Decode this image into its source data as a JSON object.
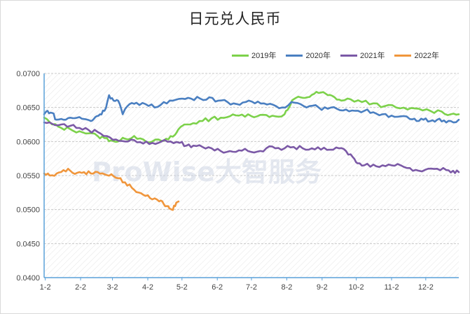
{
  "chart_data": {
    "type": "line",
    "title": "日元兑人民币",
    "watermark": "ProWise大智服务",
    "xlabel": "",
    "ylabel": "",
    "ylim": [
      0.04,
      0.07
    ],
    "y_ticks": [
      "0.0400",
      "0.0450",
      "0.0500",
      "0.0550",
      "0.0600",
      "0.0650",
      "0.0700"
    ],
    "x_ticks": [
      "1-2",
      "2-2",
      "3-2",
      "4-2",
      "5-2",
      "6-2",
      "7-2",
      "8-2",
      "9-2",
      "10-2",
      "11-2",
      "12-2"
    ],
    "grid": "horizontal dashed, hatched background",
    "legend_position": "top-right",
    "x_unit": "day of year",
    "series": [
      {
        "name": "2019年",
        "color": "#7cd14a",
        "points": [
          [
            1,
            0.0635
          ],
          [
            8,
            0.0625
          ],
          [
            16,
            0.062
          ],
          [
            24,
            0.0618
          ],
          [
            32,
            0.0615
          ],
          [
            40,
            0.0612
          ],
          [
            48,
            0.0608
          ],
          [
            54,
            0.0605
          ],
          [
            60,
            0.0602
          ],
          [
            66,
            0.06
          ],
          [
            72,
            0.0604
          ],
          [
            80,
            0.0608
          ],
          [
            88,
            0.0603
          ],
          [
            96,
            0.06
          ],
          [
            104,
            0.0601
          ],
          [
            110,
            0.0603
          ],
          [
            116,
            0.061
          ],
          [
            120,
            0.062
          ],
          [
            124,
            0.0625
          ],
          [
            132,
            0.0627
          ],
          [
            140,
            0.063
          ],
          [
            148,
            0.0634
          ],
          [
            156,
            0.0635
          ],
          [
            164,
            0.0637
          ],
          [
            172,
            0.0638
          ],
          [
            180,
            0.064
          ],
          [
            188,
            0.0637
          ],
          [
            196,
            0.0639
          ],
          [
            204,
            0.0637
          ],
          [
            212,
            0.064
          ],
          [
            216,
            0.065
          ],
          [
            220,
            0.0662
          ],
          [
            226,
            0.0665
          ],
          [
            232,
            0.0665
          ],
          [
            238,
            0.067
          ],
          [
            244,
            0.0672
          ],
          [
            250,
            0.0668
          ],
          [
            256,
            0.0665
          ],
          [
            262,
            0.066
          ],
          [
            270,
            0.0662
          ],
          [
            280,
            0.0658
          ],
          [
            290,
            0.0656
          ],
          [
            300,
            0.0652
          ],
          [
            310,
            0.065
          ],
          [
            320,
            0.0647
          ],
          [
            330,
            0.0648
          ],
          [
            340,
            0.0645
          ],
          [
            350,
            0.0644
          ],
          [
            358,
            0.064
          ],
          [
            365,
            0.064
          ]
        ]
      },
      {
        "name": "2020年",
        "color": "#4a7fc1",
        "points": [
          [
            1,
            0.064
          ],
          [
            4,
            0.0645
          ],
          [
            8,
            0.0642
          ],
          [
            12,
            0.0632
          ],
          [
            18,
            0.0632
          ],
          [
            24,
            0.0635
          ],
          [
            30,
            0.0635
          ],
          [
            36,
            0.0633
          ],
          [
            42,
            0.063
          ],
          [
            46,
            0.0636
          ],
          [
            50,
            0.064
          ],
          [
            54,
            0.0645
          ],
          [
            58,
            0.0668
          ],
          [
            62,
            0.066
          ],
          [
            66,
            0.066
          ],
          [
            70,
            0.064
          ],
          [
            76,
            0.0655
          ],
          [
            82,
            0.0657
          ],
          [
            90,
            0.0655
          ],
          [
            98,
            0.065
          ],
          [
            106,
            0.0658
          ],
          [
            114,
            0.066
          ],
          [
            122,
            0.0663
          ],
          [
            130,
            0.0663
          ],
          [
            138,
            0.0663
          ],
          [
            146,
            0.0665
          ],
          [
            154,
            0.066
          ],
          [
            162,
            0.0658
          ],
          [
            170,
            0.0655
          ],
          [
            178,
            0.0658
          ],
          [
            186,
            0.0656
          ],
          [
            194,
            0.0656
          ],
          [
            202,
            0.0654
          ],
          [
            210,
            0.065
          ],
          [
            218,
            0.0658
          ],
          [
            226,
            0.0655
          ],
          [
            234,
            0.0652
          ],
          [
            242,
            0.065
          ],
          [
            250,
            0.0648
          ],
          [
            258,
            0.0648
          ],
          [
            266,
            0.0647
          ],
          [
            274,
            0.0645
          ],
          [
            282,
            0.0645
          ],
          [
            290,
            0.0643
          ],
          [
            298,
            0.064
          ],
          [
            306,
            0.0638
          ],
          [
            314,
            0.0637
          ],
          [
            322,
            0.0633
          ],
          [
            328,
            0.063
          ],
          [
            334,
            0.0632
          ],
          [
            340,
            0.063
          ],
          [
            346,
            0.0632
          ],
          [
            352,
            0.0631
          ],
          [
            358,
            0.063
          ],
          [
            365,
            0.0632
          ]
        ]
      },
      {
        "name": "2021年",
        "color": "#7b59a6",
        "points": [
          [
            1,
            0.0628
          ],
          [
            8,
            0.0626
          ],
          [
            16,
            0.0625
          ],
          [
            24,
            0.0623
          ],
          [
            32,
            0.062
          ],
          [
            40,
            0.0617
          ],
          [
            48,
            0.0614
          ],
          [
            56,
            0.0608
          ],
          [
            64,
            0.0603
          ],
          [
            72,
            0.06
          ],
          [
            80,
            0.0602
          ],
          [
            88,
            0.0597
          ],
          [
            96,
            0.0598
          ],
          [
            104,
            0.06
          ],
          [
            112,
            0.06
          ],
          [
            120,
            0.0598
          ],
          [
            126,
            0.0594
          ],
          [
            132,
            0.0594
          ],
          [
            140,
            0.0592
          ],
          [
            148,
            0.059
          ],
          [
            156,
            0.0586
          ],
          [
            164,
            0.0586
          ],
          [
            172,
            0.0587
          ],
          [
            180,
            0.0586
          ],
          [
            188,
            0.0585
          ],
          [
            196,
            0.059
          ],
          [
            204,
            0.059
          ],
          [
            212,
            0.059
          ],
          [
            220,
            0.0592
          ],
          [
            228,
            0.059
          ],
          [
            236,
            0.059
          ],
          [
            244,
            0.0588
          ],
          [
            252,
            0.0588
          ],
          [
            260,
            0.059
          ],
          [
            266,
            0.0586
          ],
          [
            272,
            0.0577
          ],
          [
            276,
            0.0568
          ],
          [
            282,
            0.0565
          ],
          [
            290,
            0.0566
          ],
          [
            298,
            0.0565
          ],
          [
            306,
            0.0565
          ],
          [
            314,
            0.0565
          ],
          [
            322,
            0.0561
          ],
          [
            330,
            0.0557
          ],
          [
            338,
            0.056
          ],
          [
            346,
            0.056
          ],
          [
            354,
            0.0558
          ],
          [
            360,
            0.0557
          ],
          [
            365,
            0.0555
          ]
        ]
      },
      {
        "name": "2022年",
        "color": "#f0963c",
        "points": [
          [
            1,
            0.0553
          ],
          [
            6,
            0.055
          ],
          [
            12,
            0.0553
          ],
          [
            18,
            0.0558
          ],
          [
            24,
            0.0557
          ],
          [
            30,
            0.0554
          ],
          [
            36,
            0.0555
          ],
          [
            42,
            0.0553
          ],
          [
            48,
            0.0555
          ],
          [
            54,
            0.0552
          ],
          [
            60,
            0.0552
          ],
          [
            66,
            0.0546
          ],
          [
            72,
            0.054
          ],
          [
            78,
            0.0532
          ],
          [
            84,
            0.0525
          ],
          [
            90,
            0.052
          ],
          [
            96,
            0.0515
          ],
          [
            102,
            0.0512
          ],
          [
            106,
            0.0508
          ],
          [
            110,
            0.0505
          ],
          [
            113,
            0.05
          ],
          [
            116,
            0.0505
          ],
          [
            119,
            0.0512
          ]
        ]
      }
    ]
  }
}
